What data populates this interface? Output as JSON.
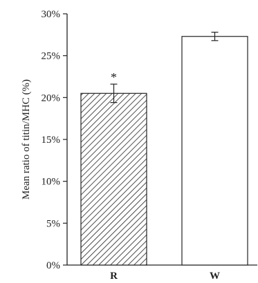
{
  "chart_data": {
    "type": "bar",
    "ylabel": "Mean ratio of titin/MHC (%)",
    "ylim": [
      0,
      30
    ],
    "yticks": [
      "0%",
      "5%",
      "10%",
      "15%",
      "20%",
      "25%",
      "30%"
    ],
    "ytick_values": [
      0,
      5,
      10,
      15,
      20,
      25,
      30
    ],
    "categories": [
      "R",
      "W"
    ],
    "values": [
      20.5,
      27.3
    ],
    "errors": [
      1.1,
      0.5
    ],
    "fills": [
      "hatched",
      "white"
    ],
    "annotations": [
      "*",
      ""
    ],
    "grid": false,
    "colors": {
      "stroke": "#222222",
      "fill": "#ffffff"
    }
  }
}
